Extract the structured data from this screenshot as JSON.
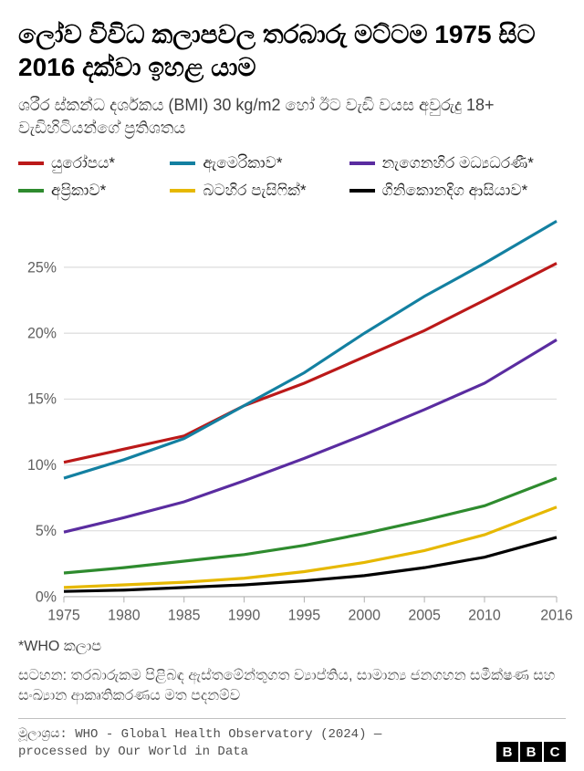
{
  "title": "ලෝව විවිධ කලාපවල තරබාරු මට්ටම 1975 සිට 2016 දක්වා ඉහළ යාම",
  "subtitle": "ශරීර ස්කන්ධ දර්ශකය (BMI) 30 kg/m2 හෝ ඊට වැඩි වයස අවුරුදු 18+ වැඩිහිටියන්ගේ ප්‍රතිශතය",
  "legend": [
    {
      "label": "යුරෝපය*",
      "color": "#bb1919"
    },
    {
      "label": "ඇමෙරිකාව*",
      "color": "#1380a1"
    },
    {
      "label": "නැගෙනහිර මධ්‍යධරණී*",
      "color": "#5a2ca0"
    },
    {
      "label": "අප්‍රිකාව*",
      "color": "#2e8b2e"
    },
    {
      "label": "බටහිර පැසිෆික්*",
      "color": "#e6b800"
    },
    {
      "label": "ගිනිකොනදිග ආසියාව*",
      "color": "#000000"
    }
  ],
  "chart": {
    "type": "line",
    "background_color": "#ffffff",
    "grid_color": "#d8d8d8",
    "axis_color": "#b0b0b0",
    "tick_color": "#606060",
    "tick_fontsize": 16,
    "line_width": 3,
    "xlim": [
      1975,
      2016
    ],
    "ylim": [
      0,
      28
    ],
    "xticks": [
      1975,
      1980,
      1985,
      1990,
      1995,
      2000,
      2005,
      2010,
      2016
    ],
    "yticks": [
      0,
      5,
      10,
      15,
      20,
      25
    ],
    "ytick_labels": [
      "0%",
      "5%",
      "10%",
      "15%",
      "20%",
      "25%"
    ],
    "series": [
      {
        "name": "europe",
        "color": "#bb1919",
        "points": [
          [
            1975,
            10.2
          ],
          [
            1980,
            11.2
          ],
          [
            1985,
            12.2
          ],
          [
            1990,
            14.5
          ],
          [
            1995,
            16.2
          ],
          [
            2000,
            18.2
          ],
          [
            2005,
            20.2
          ],
          [
            2010,
            22.5
          ],
          [
            2016,
            25.3
          ]
        ]
      },
      {
        "name": "americas",
        "color": "#1380a1",
        "points": [
          [
            1975,
            9.0
          ],
          [
            1980,
            10.4
          ],
          [
            1985,
            12.0
          ],
          [
            1990,
            14.5
          ],
          [
            1995,
            17.0
          ],
          [
            2000,
            20.0
          ],
          [
            2005,
            22.8
          ],
          [
            2010,
            25.3
          ],
          [
            2016,
            28.5
          ]
        ]
      },
      {
        "name": "east-med",
        "color": "#5a2ca0",
        "points": [
          [
            1975,
            4.9
          ],
          [
            1980,
            6.0
          ],
          [
            1985,
            7.2
          ],
          [
            1990,
            8.8
          ],
          [
            1995,
            10.5
          ],
          [
            2000,
            12.3
          ],
          [
            2005,
            14.2
          ],
          [
            2010,
            16.2
          ],
          [
            2016,
            19.5
          ]
        ]
      },
      {
        "name": "africa",
        "color": "#2e8b2e",
        "points": [
          [
            1975,
            1.8
          ],
          [
            1980,
            2.2
          ],
          [
            1985,
            2.7
          ],
          [
            1990,
            3.2
          ],
          [
            1995,
            3.9
          ],
          [
            2000,
            4.8
          ],
          [
            2005,
            5.8
          ],
          [
            2010,
            6.9
          ],
          [
            2016,
            9.0
          ]
        ]
      },
      {
        "name": "west-pacific",
        "color": "#e6b800",
        "points": [
          [
            1975,
            0.7
          ],
          [
            1980,
            0.9
          ],
          [
            1985,
            1.1
          ],
          [
            1990,
            1.4
          ],
          [
            1995,
            1.9
          ],
          [
            2000,
            2.6
          ],
          [
            2005,
            3.5
          ],
          [
            2010,
            4.7
          ],
          [
            2016,
            6.8
          ]
        ]
      },
      {
        "name": "se-asia",
        "color": "#000000",
        "points": [
          [
            1975,
            0.4
          ],
          [
            1980,
            0.5
          ],
          [
            1985,
            0.7
          ],
          [
            1990,
            0.9
          ],
          [
            1995,
            1.2
          ],
          [
            2000,
            1.6
          ],
          [
            2005,
            2.2
          ],
          [
            2010,
            3.0
          ],
          [
            2016,
            4.5
          ]
        ]
      }
    ]
  },
  "footnote": "*WHO කලාප",
  "note": "සටහන: තරබාරුකම පිළිබඳ ඇස්තමේන්තුගත ව්‍යාප්තිය, සාමාන්‍ය ජනගහන සමීක්ෂණ සහ සංඛ්‍යාන ආකෘතිකරණය මත පදනම්ව",
  "source": "මූලාශ්‍රය: WHO - Global Health Observatory (2024) — processed by Our World in Data",
  "logo": [
    "B",
    "B",
    "C"
  ]
}
